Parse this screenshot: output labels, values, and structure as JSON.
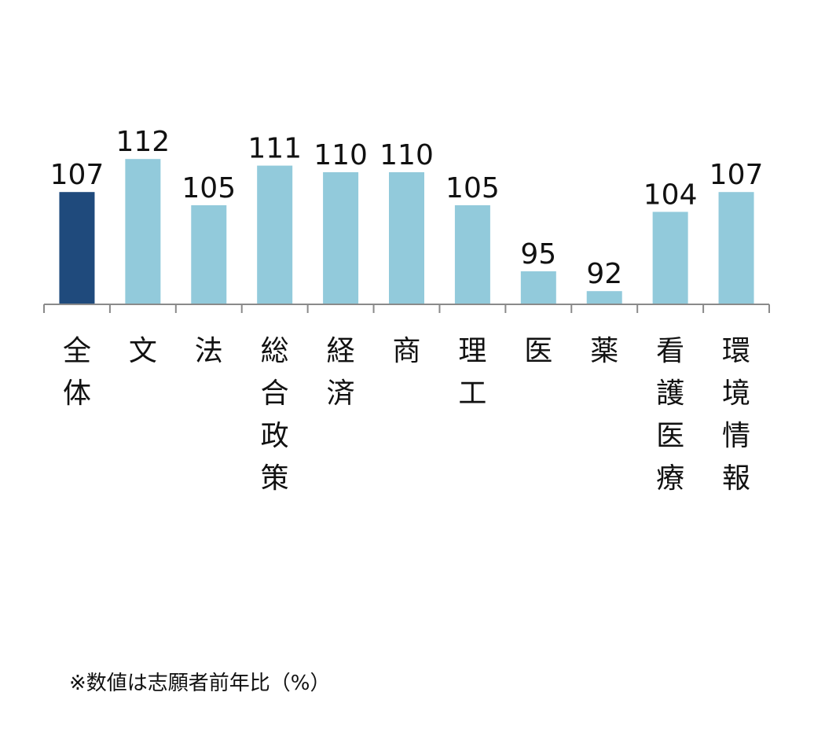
{
  "chart_data": {
    "type": "bar",
    "title": "",
    "xlabel": "",
    "ylabel": "",
    "categories": [
      "全体",
      "文",
      "法",
      "総合政策",
      "経済",
      "商",
      "理工",
      "医",
      "薬",
      "看護医療",
      "環境情報"
    ],
    "values": [
      107,
      112,
      105,
      111,
      110,
      110,
      105,
      95,
      92,
      104,
      107
    ],
    "highlight_category": "全体",
    "ylim": [
      90,
      112
    ],
    "grid": false,
    "legend": "none",
    "colors": {
      "highlight": "#1f4a7c",
      "default": "#92cadb"
    }
  },
  "footnote": "※数値は志願者前年比（%）"
}
